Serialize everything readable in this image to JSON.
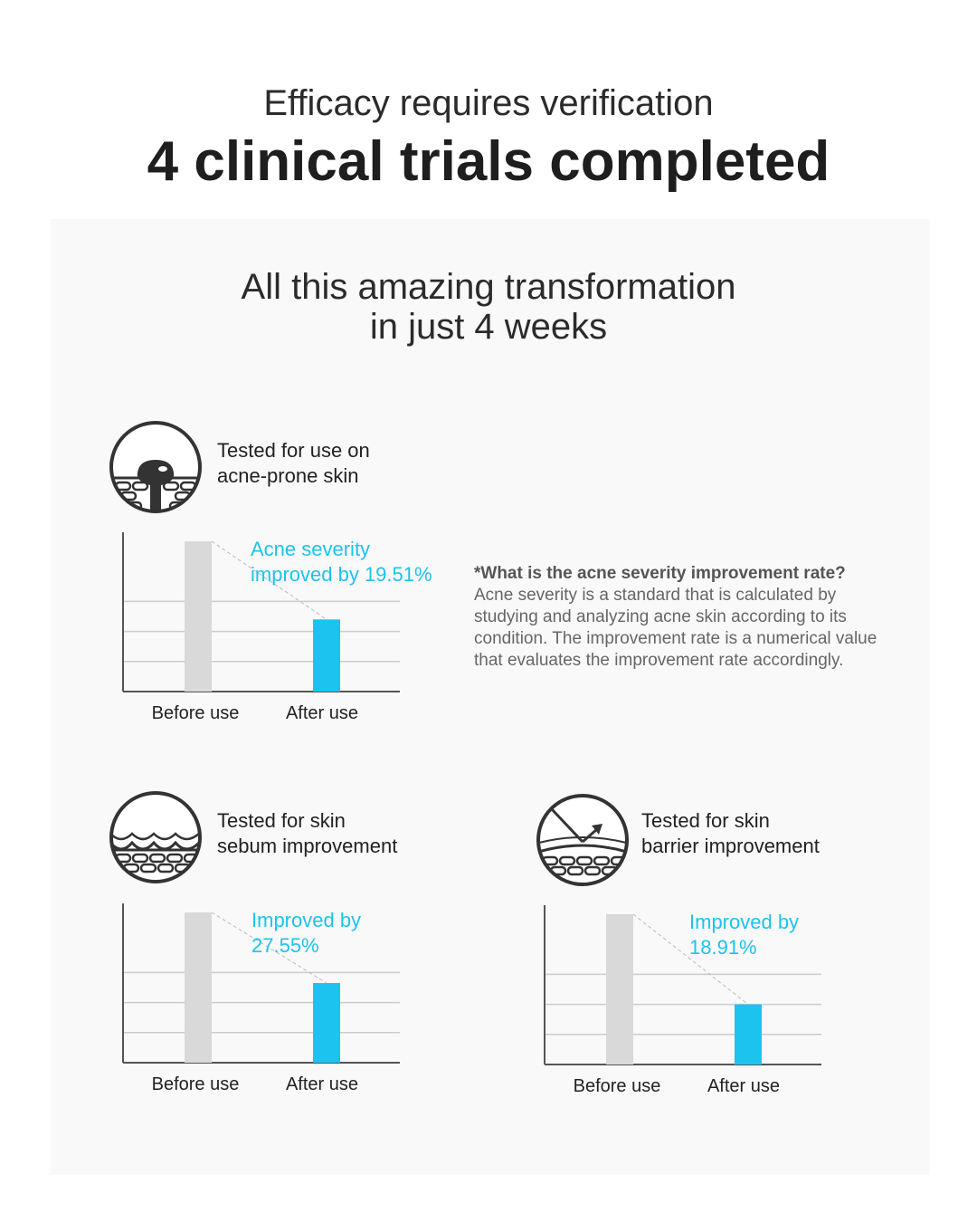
{
  "header": {
    "subtitle": "Efficacy requires verification",
    "title": "4 clinical trials completed"
  },
  "panel": {
    "heading_line1": "All this amazing transformation",
    "heading_line2": "in just 4 weeks"
  },
  "tests": [
    {
      "label_line1": "Tested for use on",
      "label_line2": "acne-prone skin",
      "icon": "acne-skin-icon"
    },
    {
      "label_line1": "Tested for skin",
      "label_line2": "sebum improvement",
      "icon": "sebum-skin-icon"
    },
    {
      "label_line1": "Tested for skin",
      "label_line2": "barrier improvement",
      "icon": "barrier-skin-icon"
    }
  ],
  "footnote": {
    "question": "*What is the acne severity improvement rate?",
    "body": "Acne severity is a standard that is calculated by studying and analyzing acne skin according to its condition. The improvement rate is a numerical value that evaluates the improvement rate accordingly."
  },
  "colors": {
    "before_bar": "#d9d9d9",
    "after_bar": "#1cc3ef",
    "accent_text": "#1cc3ef",
    "grid": "#cccccc",
    "axis": "#555555"
  },
  "chart_data": [
    {
      "type": "bar",
      "title": "Acne severity",
      "categories": [
        "Before use",
        "After use"
      ],
      "values": [
        100,
        48
      ],
      "ylim": [
        0,
        100
      ],
      "annotation_line1": "Acne severity",
      "annotation_line2": "improved by 19.51%",
      "improvement_percent": 19.51
    },
    {
      "type": "bar",
      "title": "Skin sebum",
      "categories": [
        "Before use",
        "After use"
      ],
      "values": [
        100,
        53
      ],
      "ylim": [
        0,
        100
      ],
      "annotation_line1": "Improved by",
      "annotation_line2": "27.55%",
      "improvement_percent": 27.55
    },
    {
      "type": "bar",
      "title": "Skin barrier",
      "categories": [
        "Before use",
        "After use"
      ],
      "values": [
        100,
        40
      ],
      "ylim": [
        0,
        100
      ],
      "annotation_line1": "Improved by",
      "annotation_line2": "18.91%",
      "improvement_percent": 18.91
    }
  ]
}
